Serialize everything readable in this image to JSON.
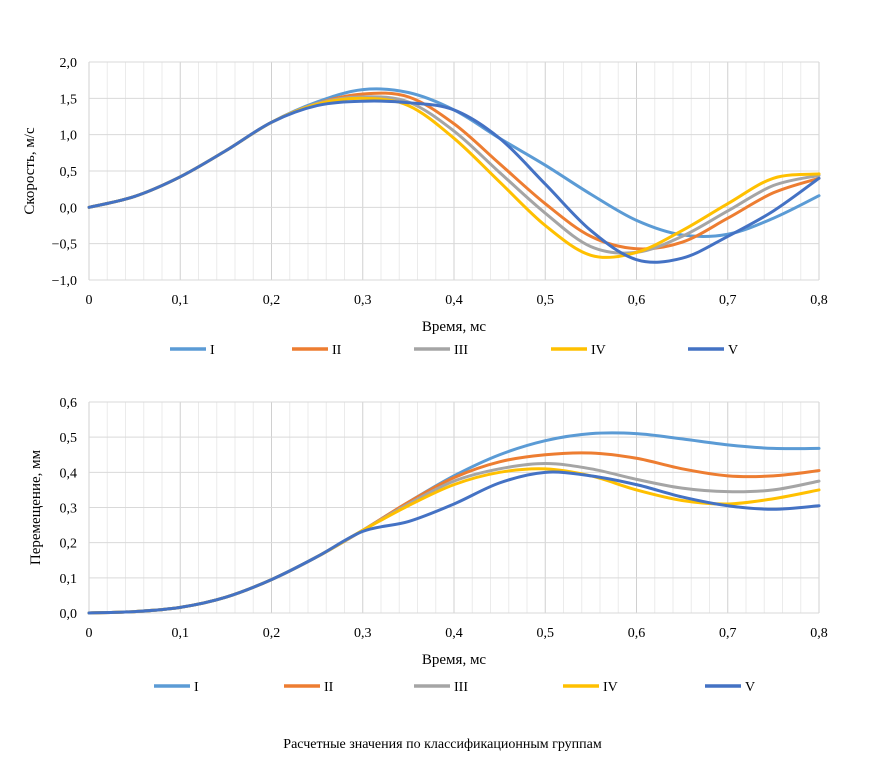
{
  "caption": "Расчетные значения по классификационным группам",
  "chart_data": [
    {
      "type": "line",
      "title": "",
      "xlabel": "Время, мс",
      "ylabel": "Скорость, м/с",
      "xlim": [
        0,
        0.8
      ],
      "ylim": [
        -1.0,
        2.0
      ],
      "grid": true,
      "legend_position": "bottom",
      "x_ticks": [
        "0",
        "0,1",
        "0,2",
        "0,3",
        "0,4",
        "0,5",
        "0,6",
        "0,7",
        "0,8"
      ],
      "y_ticks": [
        "−1,0",
        "−0,5",
        "0,0",
        "0,5",
        "1,0",
        "1,5",
        "2,0"
      ],
      "x": [
        0,
        0.05,
        0.1,
        0.15,
        0.2,
        0.25,
        0.3,
        0.35,
        0.4,
        0.45,
        0.5,
        0.55,
        0.6,
        0.65,
        0.7,
        0.75,
        0.8
      ],
      "series": [
        {
          "name": "I",
          "color": "#5B9BD5",
          "values": [
            0,
            0.15,
            0.42,
            0.78,
            1.17,
            1.45,
            1.62,
            1.58,
            1.34,
            0.95,
            0.58,
            0.18,
            -0.18,
            -0.38,
            -0.37,
            -0.15,
            0.16
          ]
        },
        {
          "name": "II",
          "color": "#ED7D31",
          "values": [
            0,
            0.15,
            0.42,
            0.78,
            1.17,
            1.43,
            1.56,
            1.52,
            1.15,
            0.6,
            0.05,
            -0.4,
            -0.57,
            -0.48,
            -0.15,
            0.2,
            0.4
          ]
        },
        {
          "name": "III",
          "color": "#A5A5A5",
          "values": [
            0,
            0.15,
            0.42,
            0.78,
            1.17,
            1.43,
            1.52,
            1.45,
            1.05,
            0.48,
            -0.08,
            -0.54,
            -0.62,
            -0.4,
            -0.05,
            0.3,
            0.44
          ]
        },
        {
          "name": "IV",
          "color": "#FFC000",
          "values": [
            0,
            0.15,
            0.42,
            0.78,
            1.17,
            1.42,
            1.5,
            1.4,
            0.95,
            0.35,
            -0.25,
            -0.66,
            -0.62,
            -0.32,
            0.05,
            0.4,
            0.46
          ]
        },
        {
          "name": "V",
          "color": "#4472C4",
          "values": [
            0,
            0.15,
            0.42,
            0.78,
            1.17,
            1.4,
            1.46,
            1.44,
            1.34,
            0.95,
            0.32,
            -0.32,
            -0.72,
            -0.7,
            -0.4,
            -0.05,
            0.4
          ]
        }
      ]
    },
    {
      "type": "line",
      "title": "",
      "xlabel": "Время, мс",
      "ylabel": "Перемещение, мм",
      "xlim": [
        0,
        0.8
      ],
      "ylim": [
        0,
        0.6
      ],
      "grid": true,
      "legend_position": "bottom",
      "x_ticks": [
        "0",
        "0,1",
        "0,2",
        "0,3",
        "0,4",
        "0,5",
        "0,6",
        "0,7",
        "0,8"
      ],
      "y_ticks": [
        "0,0",
        "0,1",
        "0,2",
        "0,3",
        "0,4",
        "0,5",
        "0,6"
      ],
      "x": [
        0,
        0.05,
        0.1,
        0.15,
        0.2,
        0.25,
        0.3,
        0.35,
        0.4,
        0.45,
        0.5,
        0.55,
        0.6,
        0.65,
        0.7,
        0.75,
        0.8
      ],
      "series": [
        {
          "name": "I",
          "color": "#5B9BD5",
          "values": [
            0,
            0.004,
            0.016,
            0.045,
            0.095,
            0.16,
            0.235,
            0.315,
            0.39,
            0.45,
            0.49,
            0.51,
            0.51,
            0.495,
            0.478,
            0.468,
            0.468
          ]
        },
        {
          "name": "II",
          "color": "#ED7D31",
          "values": [
            0,
            0.004,
            0.016,
            0.045,
            0.095,
            0.16,
            0.235,
            0.315,
            0.385,
            0.43,
            0.45,
            0.455,
            0.44,
            0.41,
            0.39,
            0.39,
            0.405
          ]
        },
        {
          "name": "III",
          "color": "#A5A5A5",
          "values": [
            0,
            0.004,
            0.016,
            0.045,
            0.095,
            0.16,
            0.235,
            0.31,
            0.375,
            0.41,
            0.425,
            0.41,
            0.38,
            0.355,
            0.345,
            0.35,
            0.375
          ]
        },
        {
          "name": "IV",
          "color": "#FFC000",
          "values": [
            0,
            0.004,
            0.016,
            0.045,
            0.095,
            0.16,
            0.235,
            0.305,
            0.365,
            0.4,
            0.41,
            0.39,
            0.35,
            0.32,
            0.31,
            0.325,
            0.35
          ]
        },
        {
          "name": "V",
          "color": "#4472C4",
          "values": [
            0,
            0.004,
            0.016,
            0.045,
            0.095,
            0.16,
            0.232,
            0.26,
            0.31,
            0.37,
            0.4,
            0.39,
            0.365,
            0.33,
            0.305,
            0.295,
            0.305
          ]
        }
      ]
    }
  ]
}
